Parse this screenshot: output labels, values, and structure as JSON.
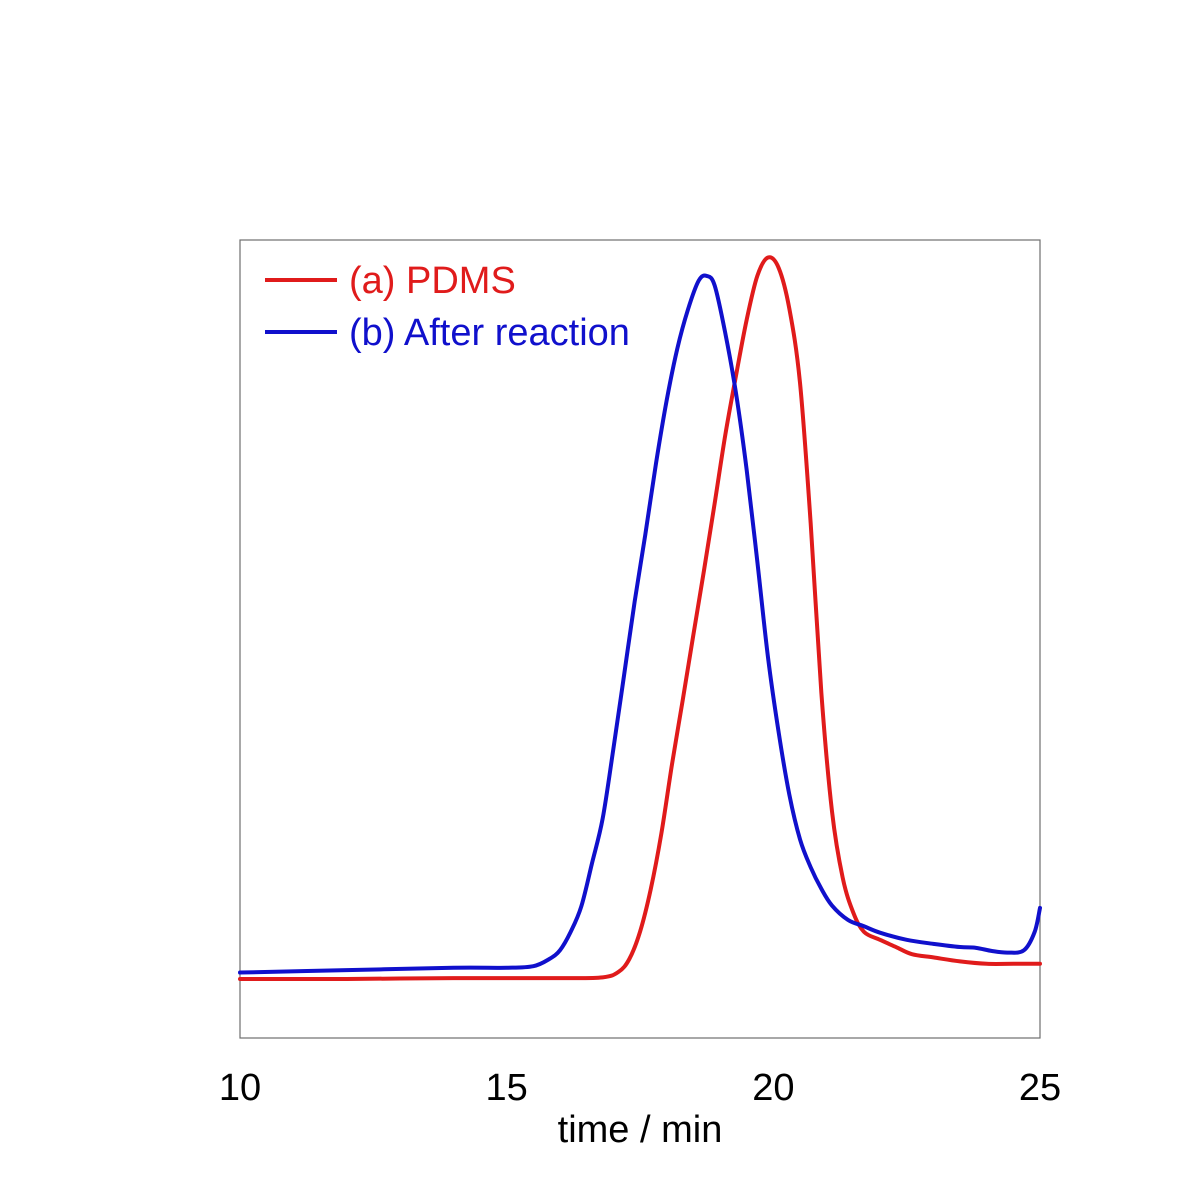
{
  "chart_data": {
    "type": "line",
    "title": "",
    "xlabel": "time / min",
    "ylabel": "",
    "xlim": [
      10,
      25
    ],
    "ylim": [
      0,
      100
    ],
    "xticks": [
      10,
      15,
      20,
      25
    ],
    "grid": false,
    "legend_position": "top-left",
    "series": [
      {
        "name": "(a) PDMS",
        "color": "#e01b1b",
        "x": [
          10,
          12,
          14,
          16,
          16.8,
          17.1,
          17.3,
          17.5,
          17.7,
          17.9,
          18.1,
          18.3,
          18.5,
          18.7,
          18.9,
          19.1,
          19.3,
          19.5,
          19.7,
          19.9,
          20.1,
          20.3,
          20.5,
          20.7,
          20.9,
          21.1,
          21.3,
          21.5,
          21.7,
          22.0,
          22.3,
          22.6,
          23.0,
          23.5,
          24.0,
          24.5,
          25.0
        ],
        "y": [
          7.4,
          7.4,
          7.5,
          7.5,
          7.6,
          8.3,
          9.9,
          13.3,
          18.6,
          25.6,
          34.3,
          42.3,
          50.5,
          58.6,
          67.0,
          75.6,
          83.0,
          90.0,
          95.5,
          97.8,
          96.5,
          91.4,
          82.1,
          64.5,
          43.3,
          28.4,
          20.1,
          15.7,
          13.3,
          12.3,
          11.4,
          10.5,
          10.1,
          9.6,
          9.3,
          9.3,
          9.3
        ]
      },
      {
        "name": "(b) After reaction",
        "color": "#1010cc",
        "x": [
          10,
          12,
          14,
          15,
          15.5,
          15.8,
          16.0,
          16.2,
          16.4,
          16.6,
          16.8,
          17.0,
          17.2,
          17.4,
          17.6,
          17.8,
          18.0,
          18.2,
          18.4,
          18.6,
          18.75,
          18.9,
          19.1,
          19.3,
          19.5,
          19.7,
          19.9,
          20.1,
          20.3,
          20.5,
          20.7,
          20.9,
          21.1,
          21.4,
          21.7,
          22.0,
          22.5,
          23.0,
          23.5,
          23.8,
          24.1,
          24.4,
          24.7,
          24.9,
          25.0
        ],
        "y": [
          8.2,
          8.5,
          8.8,
          8.8,
          9.0,
          9.9,
          11.0,
          13.3,
          16.5,
          21.9,
          27.5,
          36.2,
          45.4,
          54.7,
          63.1,
          72.0,
          79.9,
          86.4,
          91.3,
          94.9,
          95.5,
          94.3,
          88.3,
          80.8,
          71.2,
          59.7,
          47.7,
          38.3,
          30.5,
          24.9,
          21.4,
          18.7,
          16.6,
          14.8,
          14.0,
          13.2,
          12.3,
          11.8,
          11.4,
          11.3,
          10.9,
          10.7,
          11.0,
          13.3,
          16.3
        ]
      }
    ]
  }
}
